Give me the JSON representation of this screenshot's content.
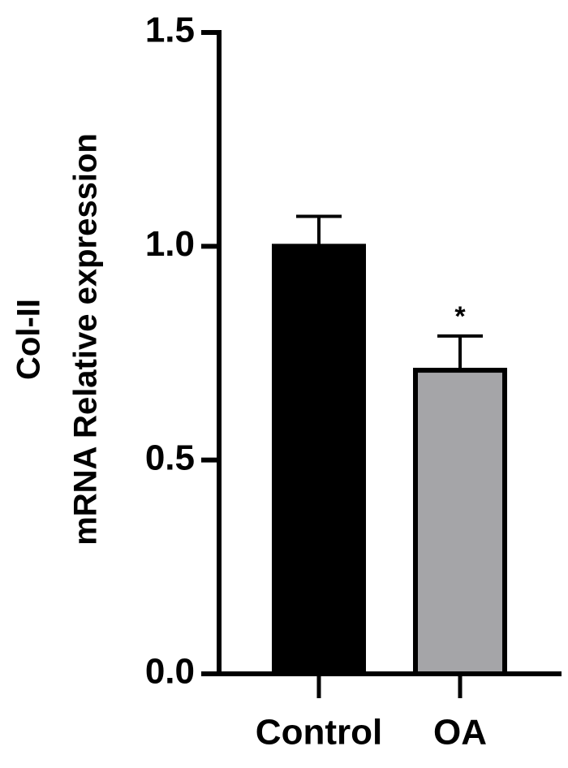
{
  "chart_data": {
    "type": "bar",
    "ylabel": [
      "Col-II",
      "mRNA Relative expression"
    ],
    "categories": [
      "Control",
      "OA"
    ],
    "values": [
      1.0,
      0.71
    ],
    "errors": [
      0.07,
      0.08
    ],
    "colors": [
      "#000000",
      "#a5a5a8"
    ],
    "significance": [
      null,
      "*"
    ],
    "ylim": [
      0,
      1.5
    ],
    "yticks": [
      {
        "value": 0,
        "label": "0.0"
      },
      0.5,
      {
        "value": 1,
        "label": "1.0"
      },
      1.5
    ],
    "grid": false
  }
}
